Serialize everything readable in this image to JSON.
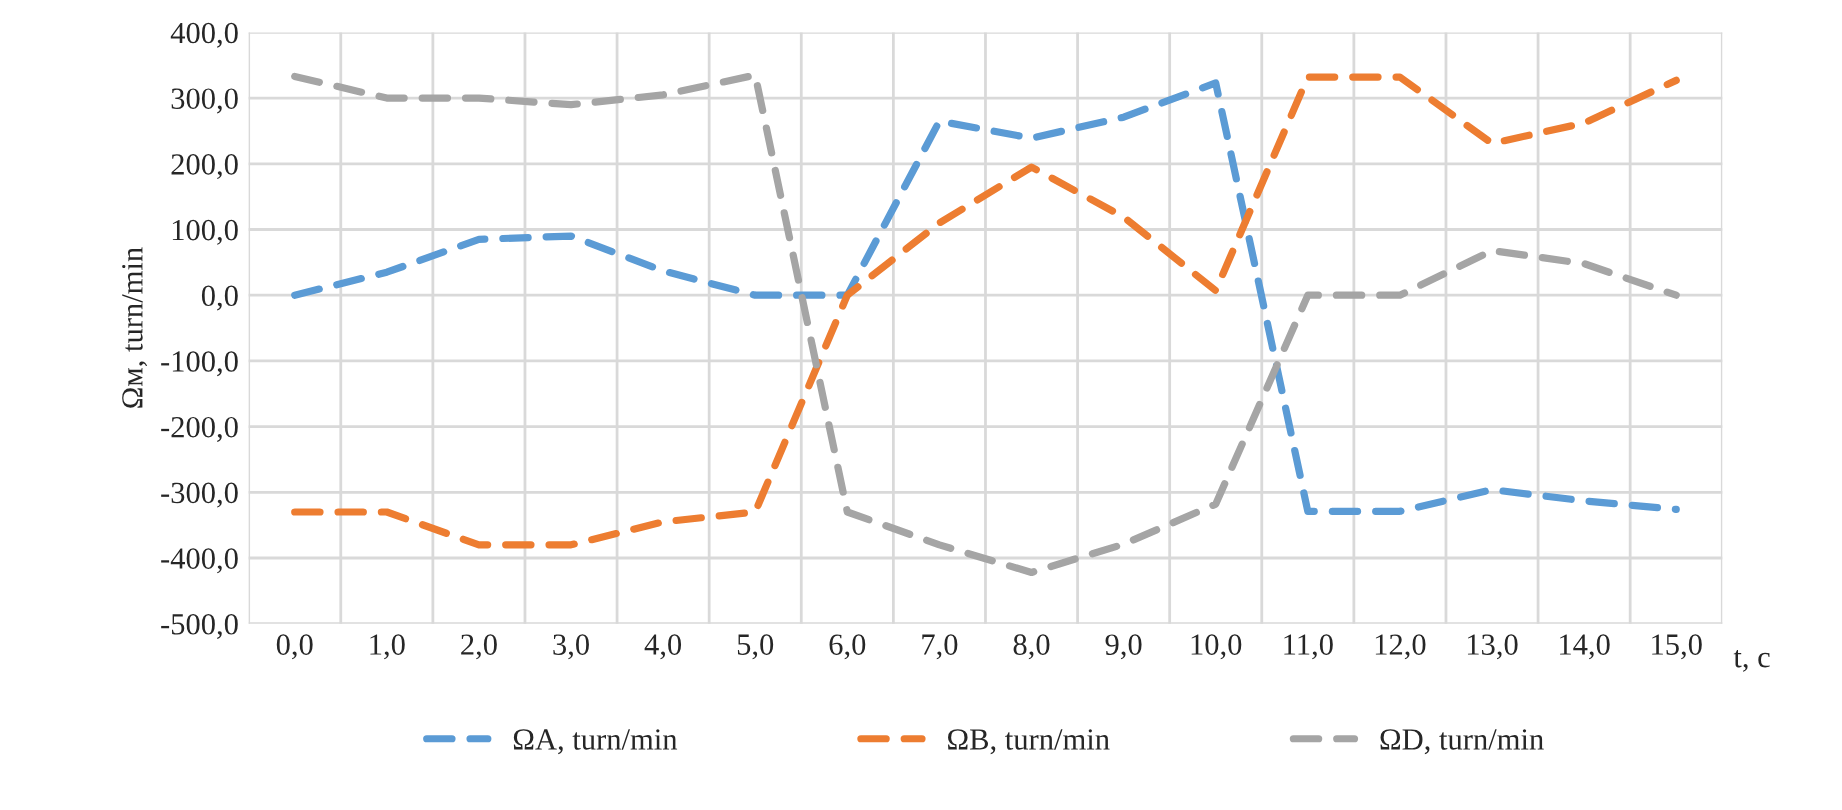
{
  "chart_data": {
    "type": "line",
    "categories": [
      "0,0",
      "1,0",
      "2,0",
      "3,0",
      "4,0",
      "5,0",
      "6,0",
      "7,0",
      "8,0",
      "9,0",
      "10,0",
      "11,0",
      "12,0",
      "13,0",
      "14,0",
      "15,0"
    ],
    "series": [
      {
        "name": "ΩA, turn/min",
        "color": "#5b9bd5",
        "values": [
          0,
          35,
          85,
          90,
          37,
          0,
          0,
          265,
          239,
          271,
          323,
          -329,
          -329,
          -296,
          -313,
          -326
        ]
      },
      {
        "name": "ΩB, turn/min",
        "color": "#ed7d31",
        "values": [
          -330,
          -330,
          -380,
          -380,
          -345,
          -330,
          0,
          110,
          195,
          119,
          7,
          332,
          332,
          231,
          262,
          327
        ]
      },
      {
        "name": "ΩD, turn/min",
        "color": "#a5a5a5",
        "values": [
          333,
          300,
          300,
          290,
          305,
          335,
          -330,
          -380,
          -422,
          -379,
          -318,
          0,
          0,
          68,
          48,
          0
        ]
      }
    ],
    "ylim": [
      -500,
      400
    ],
    "yticks": [
      {
        "value": -500,
        "label": "-500,0"
      },
      {
        "value": -400,
        "label": "-400,0"
      },
      {
        "value": -300,
        "label": "-300,0"
      },
      {
        "value": -200,
        "label": "-200,0"
      },
      {
        "value": -100,
        "label": "-100,0"
      },
      {
        "value": 0,
        "label": "0,0"
      },
      {
        "value": 100,
        "label": "100,0"
      },
      {
        "value": 200,
        "label": "200,0"
      },
      {
        "value": 300,
        "label": "300,0"
      },
      {
        "value": 400,
        "label": "400,0"
      }
    ],
    "xlabel": "t, c",
    "ylabel": "Ωм, turn/min",
    "grid": true,
    "legend": "bottom",
    "line_style": "dashed",
    "marker": "none"
  }
}
